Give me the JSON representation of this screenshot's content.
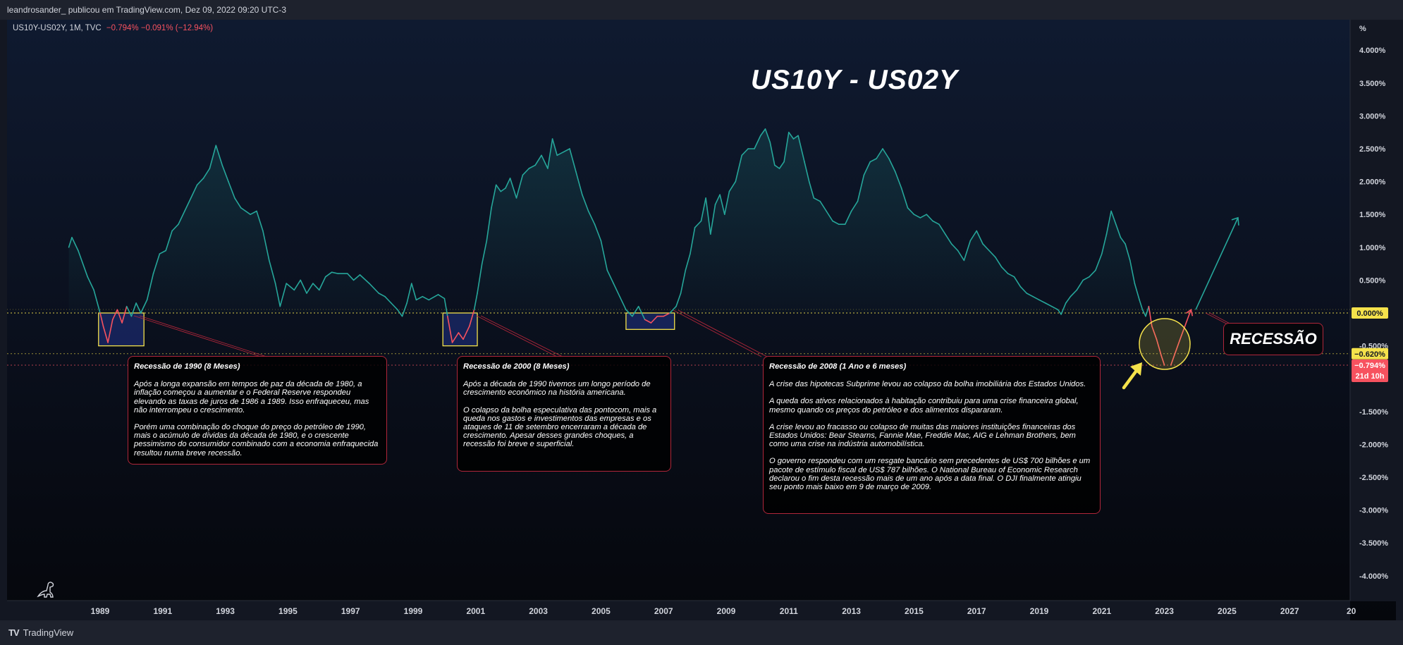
{
  "header": {
    "published_by": "leandrosander_ publicou em TradingView.com, Dez 09, 2022 09:20 UTC-3"
  },
  "symbol": {
    "name": "US10Y-US02Y, 1M, TVC",
    "change": "−0.794%  −0.091% (−12.94%)"
  },
  "title": "US10Y - US02Y",
  "recession_label": "RECESSÃO",
  "footer": {
    "brand": "TradingView"
  },
  "colors": {
    "line_positive": "#26a69a",
    "line_negative": "#f7525f",
    "box_border": "#f5e24b",
    "note_border": "#b0263a",
    "accent_yellow": "#f5e24b"
  },
  "icons": [
    "tradingview-logo-icon",
    "dinosaur-icon",
    "yellow-arrow-icon"
  ],
  "chart_data": {
    "type": "line",
    "title": "US10Y - US02Y",
    "xlabel": "",
    "ylabel": "%",
    "ylim": [
      -4.0,
      4.0
    ],
    "xlim": [
      1988.0,
      2029.0
    ],
    "x_ticks": [
      "1989",
      "1991",
      "1993",
      "1995",
      "1997",
      "1999",
      "2001",
      "2003",
      "2005",
      "2007",
      "2009",
      "2011",
      "2013",
      "2015",
      "2017",
      "2019",
      "2021",
      "2023",
      "2025",
      "2027",
      "20"
    ],
    "y_ticks": [
      "4.000%",
      "3.500%",
      "3.000%",
      "2.500%",
      "2.000%",
      "1.500%",
      "1.000%",
      "0.500%",
      "0.000%",
      "-0.500%",
      "-1.000%",
      "-1.500%",
      "-2.000%",
      "-2.500%",
      "-3.000%",
      "-3.500%",
      "-4.000%"
    ],
    "unit_label": "%",
    "grid": false,
    "series": [
      {
        "values": [
          [
            1988.0,
            1.0
          ],
          [
            1988.1,
            1.15
          ],
          [
            1988.3,
            0.95
          ],
          [
            1988.6,
            0.55
          ],
          [
            1988.8,
            0.35
          ],
          [
            1989.0,
            0.0
          ],
          [
            1989.1,
            -0.2
          ],
          [
            1989.25,
            -0.45
          ],
          [
            1989.4,
            -0.1
          ],
          [
            1989.55,
            0.05
          ],
          [
            1989.7,
            -0.15
          ],
          [
            1989.85,
            0.1
          ],
          [
            1990.0,
            -0.05
          ],
          [
            1990.15,
            0.15
          ],
          [
            1990.3,
            0.0
          ],
          [
            1990.5,
            0.2
          ],
          [
            1990.7,
            0.6
          ],
          [
            1990.9,
            0.9
          ],
          [
            1991.1,
            0.95
          ],
          [
            1991.3,
            1.25
          ],
          [
            1991.5,
            1.35
          ],
          [
            1991.7,
            1.55
          ],
          [
            1991.9,
            1.75
          ],
          [
            1992.1,
            1.95
          ],
          [
            1992.3,
            2.05
          ],
          [
            1992.5,
            2.2
          ],
          [
            1992.7,
            2.55
          ],
          [
            1992.9,
            2.25
          ],
          [
            1993.1,
            2.0
          ],
          [
            1993.3,
            1.75
          ],
          [
            1993.5,
            1.6
          ],
          [
            1993.8,
            1.5
          ],
          [
            1994.0,
            1.55
          ],
          [
            1994.2,
            1.25
          ],
          [
            1994.4,
            0.8
          ],
          [
            1994.6,
            0.45
          ],
          [
            1994.75,
            0.1
          ],
          [
            1994.95,
            0.45
          ],
          [
            1995.2,
            0.35
          ],
          [
            1995.4,
            0.5
          ],
          [
            1995.6,
            0.3
          ],
          [
            1995.8,
            0.45
          ],
          [
            1996.0,
            0.35
          ],
          [
            1996.2,
            0.55
          ],
          [
            1996.4,
            0.62
          ],
          [
            1996.6,
            0.6
          ],
          [
            1996.9,
            0.6
          ],
          [
            1997.1,
            0.5
          ],
          [
            1997.3,
            0.58
          ],
          [
            1997.6,
            0.45
          ],
          [
            1997.9,
            0.3
          ],
          [
            1998.1,
            0.25
          ],
          [
            1998.3,
            0.15
          ],
          [
            1998.5,
            0.05
          ],
          [
            1998.65,
            -0.05
          ],
          [
            1998.8,
            0.15
          ],
          [
            1998.95,
            0.45
          ],
          [
            1999.1,
            0.2
          ],
          [
            1999.3,
            0.25
          ],
          [
            1999.5,
            0.2
          ],
          [
            1999.8,
            0.28
          ],
          [
            2000.0,
            0.22
          ],
          [
            2000.1,
            -0.05
          ],
          [
            2000.25,
            -0.45
          ],
          [
            2000.45,
            -0.3
          ],
          [
            2000.6,
            -0.4
          ],
          [
            2000.8,
            -0.2
          ],
          [
            2000.95,
            0.05
          ],
          [
            2001.05,
            0.3
          ],
          [
            2001.2,
            0.75
          ],
          [
            2001.35,
            1.1
          ],
          [
            2001.5,
            1.6
          ],
          [
            2001.65,
            1.95
          ],
          [
            2001.8,
            1.85
          ],
          [
            2001.95,
            1.9
          ],
          [
            2002.1,
            2.05
          ],
          [
            2002.3,
            1.75
          ],
          [
            2002.5,
            2.1
          ],
          [
            2002.7,
            2.2
          ],
          [
            2002.9,
            2.25
          ],
          [
            2003.1,
            2.4
          ],
          [
            2003.3,
            2.2
          ],
          [
            2003.45,
            2.65
          ],
          [
            2003.6,
            2.4
          ],
          [
            2003.8,
            2.45
          ],
          [
            2004.0,
            2.5
          ],
          [
            2004.2,
            2.15
          ],
          [
            2004.4,
            1.8
          ],
          [
            2004.6,
            1.55
          ],
          [
            2004.8,
            1.35
          ],
          [
            2005.0,
            1.1
          ],
          [
            2005.2,
            0.65
          ],
          [
            2005.4,
            0.45
          ],
          [
            2005.6,
            0.25
          ],
          [
            2005.8,
            0.05
          ],
          [
            2006.0,
            -0.05
          ],
          [
            2006.2,
            0.1
          ],
          [
            2006.4,
            -0.1
          ],
          [
            2006.6,
            -0.15
          ],
          [
            2006.8,
            -0.05
          ],
          [
            2007.0,
            -0.05
          ],
          [
            2007.2,
            0.0
          ],
          [
            2007.4,
            0.1
          ],
          [
            2007.55,
            0.3
          ],
          [
            2007.7,
            0.65
          ],
          [
            2007.85,
            0.9
          ],
          [
            2008.0,
            1.3
          ],
          [
            2008.2,
            1.4
          ],
          [
            2008.35,
            1.75
          ],
          [
            2008.5,
            1.2
          ],
          [
            2008.65,
            1.65
          ],
          [
            2008.8,
            1.8
          ],
          [
            2008.95,
            1.5
          ],
          [
            2009.1,
            1.85
          ],
          [
            2009.3,
            2.0
          ],
          [
            2009.5,
            2.4
          ],
          [
            2009.7,
            2.5
          ],
          [
            2009.9,
            2.5
          ],
          [
            2010.1,
            2.7
          ],
          [
            2010.25,
            2.8
          ],
          [
            2010.4,
            2.6
          ],
          [
            2010.55,
            2.25
          ],
          [
            2010.7,
            2.2
          ],
          [
            2010.85,
            2.3
          ],
          [
            2011.0,
            2.75
          ],
          [
            2011.15,
            2.65
          ],
          [
            2011.3,
            2.7
          ],
          [
            2011.5,
            2.3
          ],
          [
            2011.65,
            2.0
          ],
          [
            2011.8,
            1.75
          ],
          [
            2012.0,
            1.7
          ],
          [
            2012.2,
            1.55
          ],
          [
            2012.4,
            1.4
          ],
          [
            2012.6,
            1.35
          ],
          [
            2012.8,
            1.35
          ],
          [
            2013.0,
            1.55
          ],
          [
            2013.2,
            1.7
          ],
          [
            2013.4,
            2.1
          ],
          [
            2013.6,
            2.3
          ],
          [
            2013.8,
            2.35
          ],
          [
            2014.0,
            2.5
          ],
          [
            2014.2,
            2.35
          ],
          [
            2014.4,
            2.15
          ],
          [
            2014.6,
            1.9
          ],
          [
            2014.8,
            1.6
          ],
          [
            2015.0,
            1.5
          ],
          [
            2015.2,
            1.45
          ],
          [
            2015.4,
            1.5
          ],
          [
            2015.6,
            1.4
          ],
          [
            2015.8,
            1.35
          ],
          [
            2016.0,
            1.2
          ],
          [
            2016.2,
            1.05
          ],
          [
            2016.4,
            0.95
          ],
          [
            2016.6,
            0.8
          ],
          [
            2016.8,
            1.1
          ],
          [
            2017.0,
            1.25
          ],
          [
            2017.2,
            1.05
          ],
          [
            2017.4,
            0.95
          ],
          [
            2017.6,
            0.85
          ],
          [
            2017.8,
            0.7
          ],
          [
            2018.0,
            0.6
          ],
          [
            2018.2,
            0.55
          ],
          [
            2018.4,
            0.4
          ],
          [
            2018.6,
            0.3
          ],
          [
            2018.8,
            0.25
          ],
          [
            2019.0,
            0.2
          ],
          [
            2019.2,
            0.15
          ],
          [
            2019.4,
            0.1
          ],
          [
            2019.6,
            0.05
          ],
          [
            2019.7,
            -0.02
          ],
          [
            2019.85,
            0.15
          ],
          [
            2020.0,
            0.25
          ],
          [
            2020.2,
            0.35
          ],
          [
            2020.4,
            0.5
          ],
          [
            2020.6,
            0.55
          ],
          [
            2020.8,
            0.65
          ],
          [
            2021.0,
            0.9
          ],
          [
            2021.15,
            1.2
          ],
          [
            2021.3,
            1.55
          ],
          [
            2021.45,
            1.35
          ],
          [
            2021.6,
            1.15
          ],
          [
            2021.75,
            1.05
          ],
          [
            2021.9,
            0.8
          ],
          [
            2022.05,
            0.45
          ],
          [
            2022.2,
            0.2
          ],
          [
            2022.3,
            0.05
          ],
          [
            2022.4,
            -0.05
          ],
          [
            2022.5,
            0.1
          ],
          [
            2022.6,
            -0.2
          ],
          [
            2022.75,
            -0.4
          ],
          [
            2022.9,
            -0.65
          ],
          [
            2023.0,
            -0.794
          ]
        ]
      }
    ],
    "projections": [
      {
        "points": [
          [
            2023.2,
            -0.8
          ],
          [
            2023.5,
            -0.4
          ],
          [
            2023.85,
            0.05
          ]
        ]
      },
      {
        "points": [
          [
            2024.0,
            0.05
          ],
          [
            2025.35,
            1.45
          ]
        ]
      }
    ],
    "reference_lines": [
      {
        "value": 0.0,
        "label": "0.000%"
      },
      {
        "value": -0.62,
        "label": "−0.620%"
      },
      {
        "value": -0.794,
        "label": "−0.794%"
      }
    ],
    "countdown_label": "21d 10h",
    "recession_boxes": [
      {
        "label": "Recessão de 1990 (8 Meses)",
        "x": [
          1988.95,
          1990.4
        ],
        "y": [
          -0.5,
          0.0
        ]
      },
      {
        "label": "Recessão de 2000 (8 Meses)",
        "x": [
          1999.95,
          2001.05
        ],
        "y": [
          -0.5,
          0.0
        ]
      },
      {
        "label": "Recessão de 2008 (1 Ano e 6 meses)",
        "x": [
          2005.8,
          2007.35
        ],
        "y": [
          -0.25,
          0.0
        ]
      }
    ]
  },
  "notes": [
    {
      "title": "Recessão de 1990 (8 Meses)",
      "paragraphs": [
        "Após a longa expansão em tempos de paz da década de 1980, a inflação começou a aumentar e o Federal Reserve respondeu elevando as taxas de juros de 1986 a 1989. Isso enfraqueceu, mas não interrompeu o crescimento.",
        "Porém uma combinação do choque do preço do petróleo de 1990, mais o acúmulo de dívidas da década de 1980, e o crescente pessimismo do consumidor combinado com a economia enfraquecida resultou numa breve recessão."
      ]
    },
    {
      "title": "Recessão de 2000 (8 Meses)",
      "paragraphs": [
        "Após a década de 1990 tivemos um longo período de crescimento econômico na história americana.",
        "O colapso da bolha especulativa das pontocom, mais a queda nos gastos e investimentos das empresas e os ataques de 11 de setembro encerraram a década de crescimento. Apesar desses grandes choques, a recessão foi breve e superficial."
      ]
    },
    {
      "title": "Recessão de 2008 (1 Ano e 6 meses)",
      "paragraphs": [
        "A crise das hipotecas Subprime levou ao colapso da bolha imobiliária dos Estados Unidos.",
        "A queda dos ativos relacionados à habitação contribuiu para uma crise financeira global, mesmo quando os preços do petróleo e dos alimentos dispararam.",
        "A crise levou ao fracasso ou colapso de muitas das maiores instituições financeiras dos Estados Unidos: Bear Stearns, Fannie Mae, Freddie Mac, AIG e Lehman Brothers, bem como uma crise na indústria automobilística.",
        "O governo respondeu com um resgate bancário sem precedentes de US$ 700 bilhões e um pacote de estímulo fiscal de US$ 787 bilhões. O National Bureau of Economic Research declarou o fim desta recessão mais de um ano após a data final. O DJI finalmente atingiu seu ponto mais baixo em 9 de março de 2009."
      ]
    }
  ]
}
